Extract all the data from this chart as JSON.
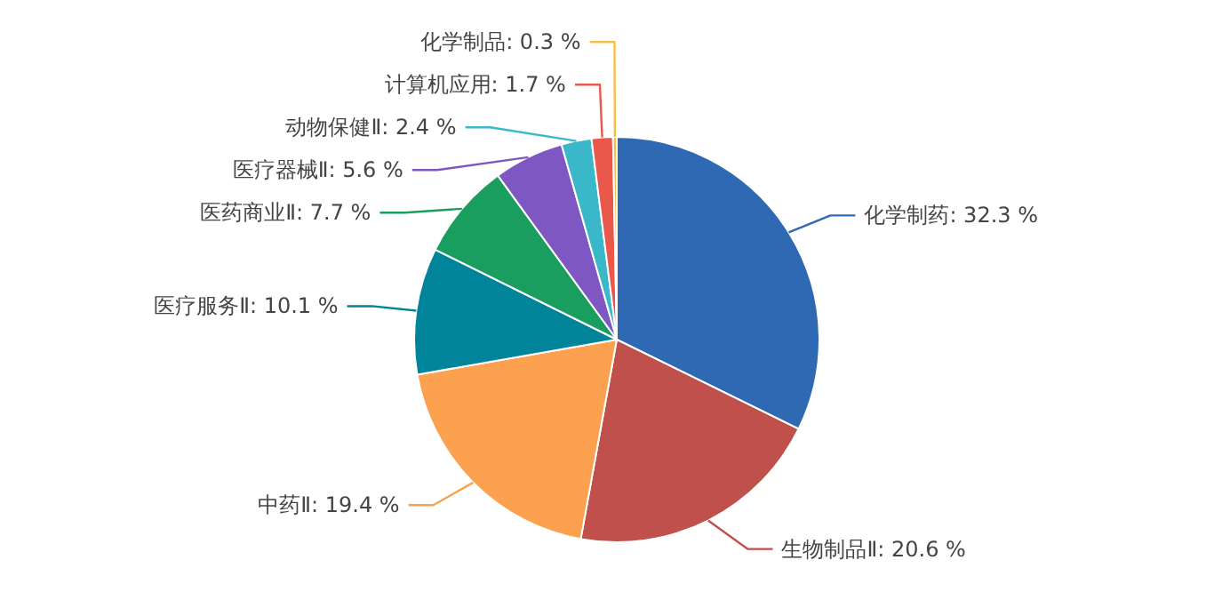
{
  "chart_data": {
    "type": "pie",
    "categories": [
      "化学制药",
      "生物制品Ⅱ",
      "中药Ⅱ",
      "医疗服务Ⅱ",
      "医药商业Ⅱ",
      "医疗器械Ⅱ",
      "动物保健Ⅱ",
      "计算机应用",
      "化学制品"
    ],
    "values": [
      32.3,
      20.6,
      19.4,
      10.1,
      7.7,
      5.6,
      2.4,
      1.7,
      0.3
    ],
    "colors": [
      "#2f69b3",
      "#bf504c",
      "#fba14f",
      "#00849a",
      "#1a9e5f",
      "#7f57c2",
      "#3ab7c9",
      "#e9584b",
      "#f5c04a"
    ],
    "value_labels": [
      ": 32.3 %",
      ": 20.6 %",
      ": 19.4 %",
      ": 10.1 %",
      ": 7.7 %",
      ": 5.6 %",
      ": 2.4 %",
      ": 1.7 %",
      ": 0.3 %"
    ],
    "legend": false
  }
}
